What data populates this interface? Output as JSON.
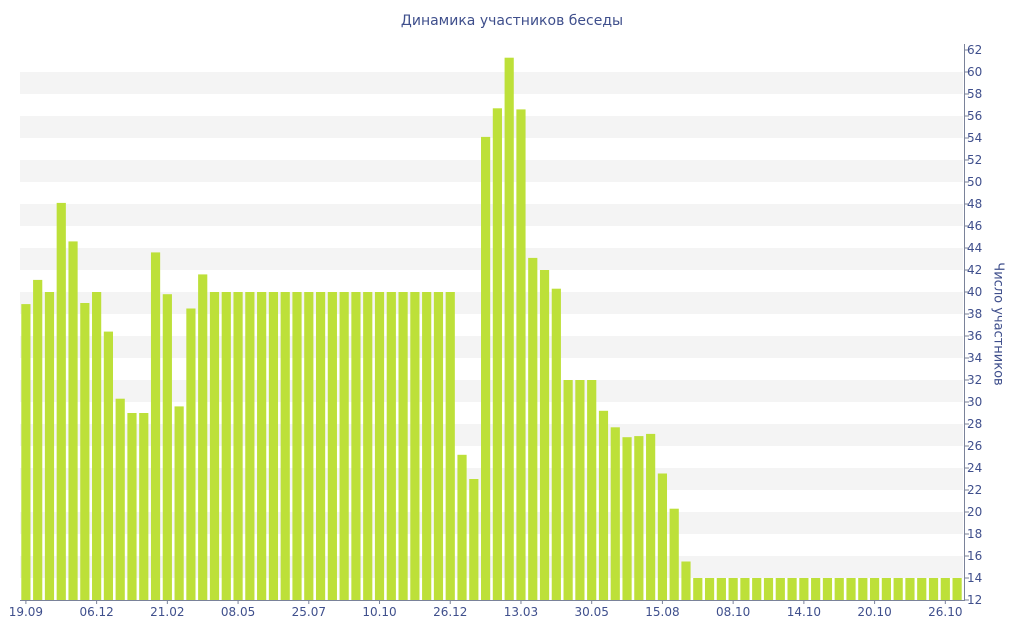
{
  "title": "Динамика участников беседы",
  "chart_data": {
    "type": "bar",
    "title": "Динамика участников беседы",
    "xlabel": "",
    "ylabel": "Число участников",
    "ylim": [
      12,
      62
    ],
    "ytick_step": 2,
    "grid": true,
    "y_axis_side": "right",
    "bar_color": "#bde039",
    "tick_label_color": "#3f4f8c",
    "x_tick_labels": [
      {
        "index": 0,
        "label": "19.09"
      },
      {
        "index": 6,
        "label": "06.12"
      },
      {
        "index": 12,
        "label": "21.02"
      },
      {
        "index": 18,
        "label": "08.05"
      },
      {
        "index": 24,
        "label": "25.07"
      },
      {
        "index": 30,
        "label": "10.10"
      },
      {
        "index": 36,
        "label": "26.12"
      },
      {
        "index": 42,
        "label": "13.03"
      },
      {
        "index": 48,
        "label": "30.05"
      },
      {
        "index": 54,
        "label": "15.08"
      },
      {
        "index": 60,
        "label": "08.10"
      },
      {
        "index": 66,
        "label": "14.10"
      },
      {
        "index": 72,
        "label": "20.10"
      },
      {
        "index": 78,
        "label": "26.10"
      }
    ],
    "values": [
      38.9,
      41.1,
      40,
      48.1,
      44.6,
      39,
      40,
      36.4,
      30.3,
      29,
      29,
      43.6,
      39.8,
      29.6,
      38.5,
      41.6,
      40,
      40,
      40,
      40,
      40,
      40,
      40,
      40,
      40,
      40,
      40,
      40,
      40,
      40,
      40,
      40,
      40,
      40,
      40,
      40,
      40,
      25.2,
      23,
      54.1,
      56.7,
      61.3,
      56.6,
      43.1,
      42,
      40.3,
      32,
      32,
      32,
      29.2,
      27.7,
      26.8,
      26.9,
      27.1,
      23.5,
      20.3,
      15.5,
      14,
      14,
      14,
      14,
      14,
      14,
      14,
      14,
      14,
      14,
      14,
      14,
      14,
      14,
      14,
      14,
      14,
      14,
      14,
      14,
      14,
      14,
      14
    ]
  }
}
